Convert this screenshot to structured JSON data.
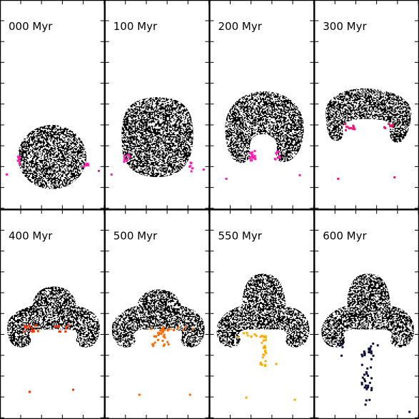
{
  "figure": {
    "panels": [
      {
        "label": "000 Myr",
        "shape": "sphere"
      },
      {
        "label": "100 Myr",
        "shape": "oblate"
      },
      {
        "label": "200 Myr",
        "shape": "cap"
      },
      {
        "label": "300 Myr",
        "shape": "cap"
      },
      {
        "label": "400 Myr",
        "shape": "mushroom"
      },
      {
        "label": "500 Myr",
        "shape": "mushroom"
      },
      {
        "label": "550 Myr",
        "shape": "mushroom"
      },
      {
        "label": "600 Myr",
        "shape": "mushroom"
      }
    ],
    "colors": {
      "bubble": "#000000",
      "background": "#ffffff",
      "frame": "#000000",
      "tracer_000": "#ff1fb0",
      "tracer_100": "#ff1fb0",
      "tracer_200": "#ff1fb0",
      "tracer_300": "#ff1070",
      "tracer_400": "#ff3000",
      "tracer_500": "#ff6a00",
      "tracer_550": "#ffaa00",
      "tracer_600": "#101040"
    }
  },
  "chart_data": {
    "type": "scatter",
    "panels": [
      {
        "time": "000 Myr",
        "series": [
          {
            "values": "tracer particles (magenta)"
          }
        ]
      },
      {
        "time": "100 Myr",
        "series": [
          {
            "values": "tracer particles (magenta)"
          }
        ]
      },
      {
        "time": "200 Myr",
        "series": [
          {
            "values": "tracer particles (magenta)"
          }
        ]
      },
      {
        "time": "300 Myr",
        "series": [
          {
            "values": "tracer particles (pink-red)"
          }
        ]
      },
      {
        "time": "400 Myr",
        "series": [
          {
            "values": "tracer particles (red)"
          }
        ]
      },
      {
        "time": "500 Myr",
        "series": [
          {
            "values": "tracer particles (orange)"
          }
        ]
      },
      {
        "time": "550 Myr",
        "series": [
          {
            "values": "tracer particles (orange/yellow)"
          }
        ]
      },
      {
        "time": "600 Myr",
        "series": [
          {
            "values": "tracer particles (dark navy)"
          }
        ]
      }
    ],
    "grid": false,
    "legend": "none"
  }
}
